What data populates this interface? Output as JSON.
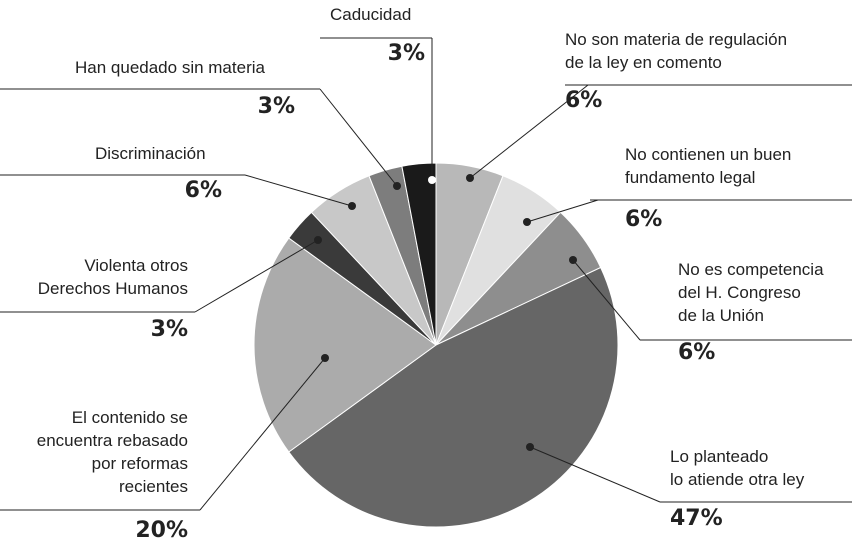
{
  "chart_data": {
    "type": "pie",
    "categories": [
      [
        "No son materia de regulación",
        "de la ley en comento"
      ],
      [
        "No contienen un buen",
        "fundamento legal"
      ],
      [
        "No es competencia",
        "del H. Congreso",
        "de la Unión"
      ],
      [
        "Lo planteado",
        "lo atiende otra ley"
      ],
      [
        "El contenido se",
        "encuentra rebasado",
        "por reformas",
        "recientes"
      ],
      [
        "Violenta otros",
        "Derechos Humanos"
      ],
      [
        "Discriminación"
      ],
      [
        "Han quedado sin materia"
      ],
      [
        "Caducidad"
      ]
    ],
    "values": [
      6,
      6,
      6,
      47,
      20,
      3,
      6,
      3,
      3
    ],
    "value_labels": [
      "6%",
      "6%",
      "6%",
      "47%",
      "20%",
      "3%",
      "6%",
      "3%",
      "3%"
    ],
    "colors": [
      "#b8b8b8",
      "#e0e0e0",
      "#8e8e8e",
      "#666666",
      "#ababab",
      "#3a3a3a",
      "#c8c8c8",
      "#7d7d7d",
      "#1a1a1a"
    ]
  }
}
